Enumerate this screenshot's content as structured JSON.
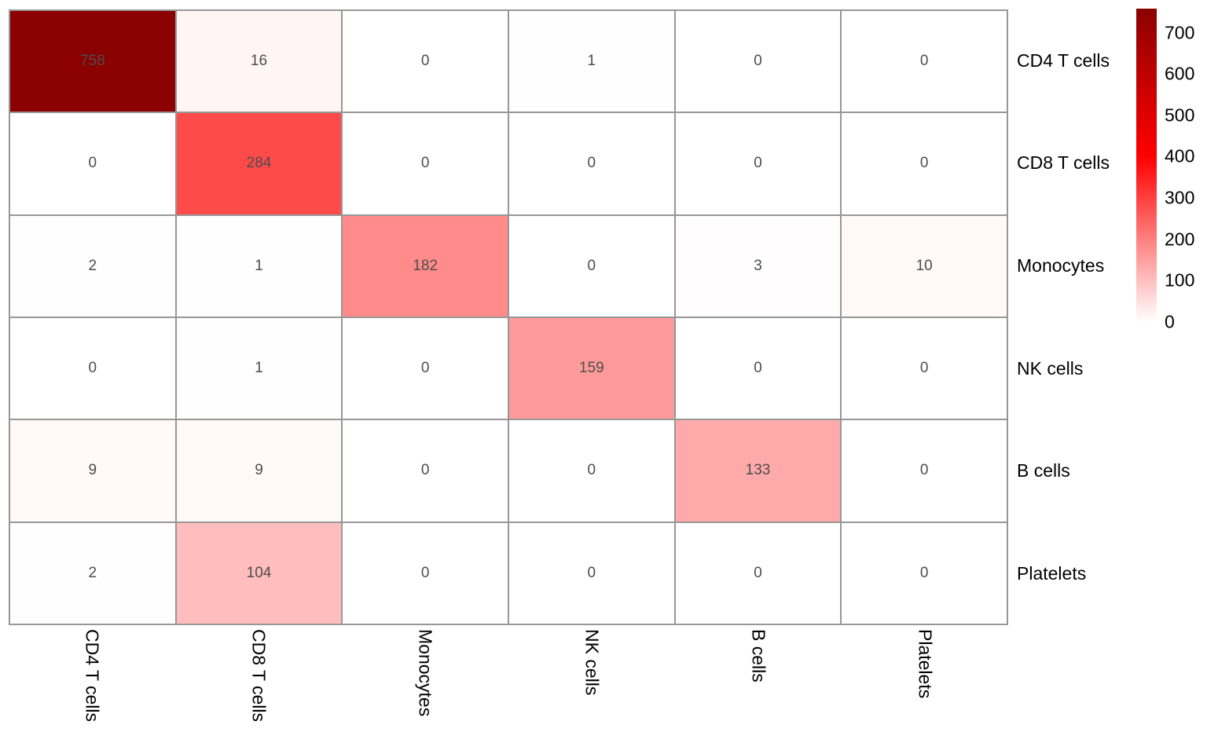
{
  "chart_data": {
    "type": "heatmap",
    "title": "",
    "rows": [
      "CD4 T cells",
      "CD8 T cells",
      "Monocytes",
      "NK cells",
      "B cells",
      "Platelets"
    ],
    "columns": [
      "CD4 T cells",
      "CD8 T cells",
      "Monocytes",
      "NK cells",
      "B cells",
      "Platelets"
    ],
    "matrix": [
      [
        758,
        16,
        0,
        1,
        0,
        0
      ],
      [
        0,
        284,
        0,
        0,
        0,
        0
      ],
      [
        2,
        1,
        182,
        0,
        3,
        10
      ],
      [
        0,
        1,
        0,
        159,
        0,
        0
      ],
      [
        9,
        9,
        0,
        0,
        133,
        0
      ],
      [
        2,
        104,
        0,
        0,
        0,
        0
      ]
    ],
    "row_labels_position": "right",
    "column_labels_position": "bottom",
    "column_labels_rotation_deg": 90,
    "grid": "on",
    "colorbar": {
      "position": "right",
      "ticks": [
        700,
        600,
        500,
        400,
        300,
        200,
        100,
        0
      ],
      "min": 0,
      "max": 758,
      "color_low": "#FFFFFF",
      "color_mid": "#FF0000",
      "color_high": "#8B0000",
      "mid_value": 400
    }
  },
  "styles": {
    "grid_line_color": "#979797",
    "cell_value_color": "#4D4D4D",
    "label_color": "#000000",
    "background": "#FFFFFF"
  }
}
